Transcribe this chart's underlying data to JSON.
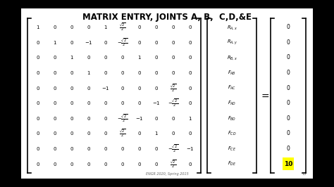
{
  "title": "MATRIX ENTRY, JOINTS A, B,  C,D,&E",
  "background_color": "#c8c8c8",
  "slide_bg": "#ffffff",
  "matrix": [
    [
      "1",
      "0",
      "0",
      "0",
      "1",
      "\\frac{\\sqrt{2}}{2}",
      "0",
      "0",
      "0",
      "0"
    ],
    [
      "0",
      "1",
      "0",
      "-1",
      "0",
      "-\\frac{\\sqrt{2}}{2}",
      "0",
      "0",
      "0",
      "0"
    ],
    [
      "0",
      "0",
      "1",
      "0",
      "0",
      "0",
      "1",
      "0",
      "0",
      "0"
    ],
    [
      "0",
      "0",
      "0",
      "1",
      "0",
      "0",
      "0",
      "0",
      "0",
      "0"
    ],
    [
      "0",
      "0",
      "0",
      "0",
      "-1",
      "0",
      "0",
      "0",
      "\\frac{\\sqrt{2}}{2}",
      "0"
    ],
    [
      "0",
      "0",
      "0",
      "0",
      "0",
      "0",
      "0",
      "-1",
      "-\\frac{\\sqrt{2}}{2}",
      "0"
    ],
    [
      "0",
      "0",
      "0",
      "0",
      "0",
      "-\\frac{\\sqrt{2}}{2}",
      "-1",
      "0",
      "0",
      "1"
    ],
    [
      "0",
      "0",
      "0",
      "0",
      "0",
      "\\frac{\\sqrt{2}}{2}",
      "0",
      "1",
      "0",
      "0"
    ],
    [
      "0",
      "0",
      "0",
      "0",
      "0",
      "0",
      "0",
      "0",
      "-\\frac{\\sqrt{2}}{2}",
      "-1"
    ],
    [
      "0",
      "0",
      "0",
      "0",
      "0",
      "0",
      "0",
      "0",
      "\\frac{\\sqrt{2}}{2}",
      "0"
    ]
  ],
  "vector_labels": [
    "R_{A,x}",
    "R_{A,y}",
    "R_{B,x}",
    "F_{AB}",
    "F_{AC}",
    "F_{AD}",
    "F_{BD}",
    "F_{CD}",
    "F_{CE}",
    "F_{DE}"
  ],
  "rhs": [
    "0",
    "0",
    "0",
    "0",
    "0",
    "0",
    "0",
    "0",
    "0",
    "10"
  ],
  "highlight_last": true,
  "footer": "ENGR 2020, Spring 2015",
  "page_number": "13",
  "title_fontsize": 8.5,
  "matrix_fontsize": 5.0,
  "vec_fontsize": 4.8,
  "rhs_fontsize": 5.5,
  "bracket_lw": 1.2
}
